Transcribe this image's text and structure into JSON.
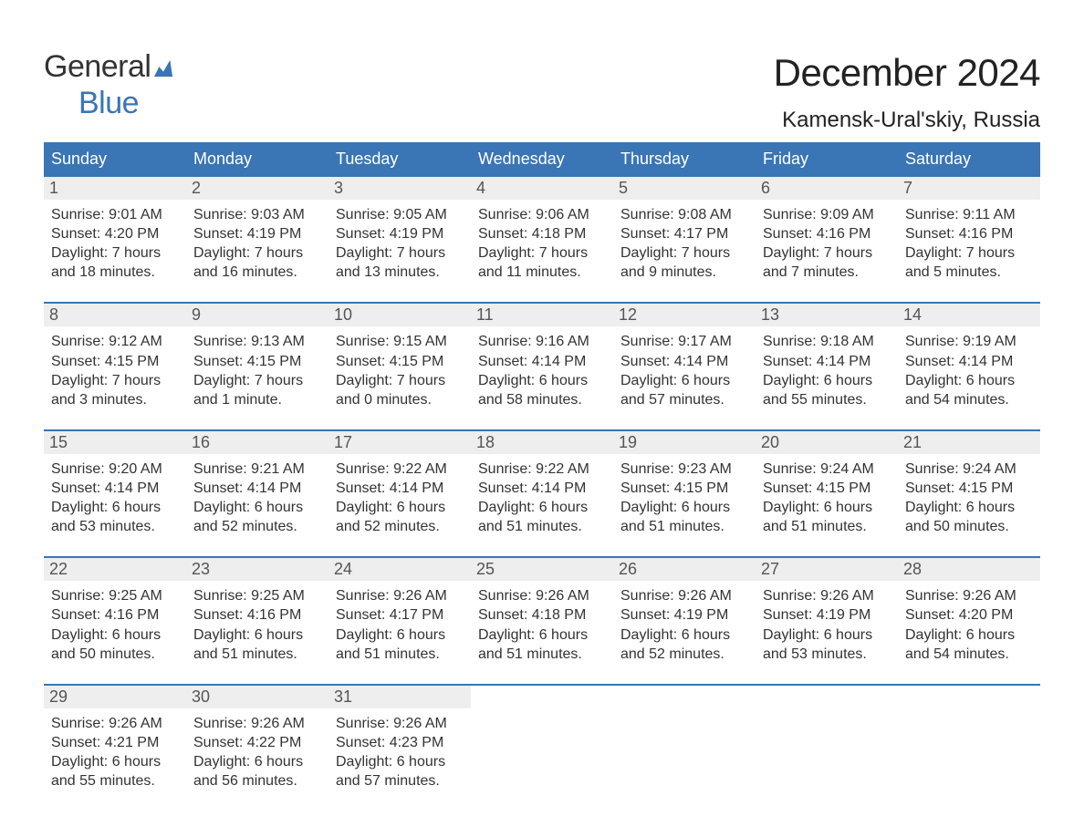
{
  "logo": {
    "word1": "General",
    "word2": "Blue",
    "icon_color": "#3a75b5"
  },
  "title": "December 2024",
  "location": "Kamensk-Ural'skiy, Russia",
  "colors": {
    "header_bg": "#3a75b5",
    "header_text": "#ffffff",
    "daynum_bg": "#eeeeee",
    "border": "#3a75b5",
    "body_text": "#333333"
  },
  "day_labels": [
    "Sunday",
    "Monday",
    "Tuesday",
    "Wednesday",
    "Thursday",
    "Friday",
    "Saturday"
  ],
  "weeks": [
    [
      {
        "n": "1",
        "sunrise": "Sunrise: 9:01 AM",
        "sunset": "Sunset: 4:20 PM",
        "d1": "Daylight: 7 hours",
        "d2": "and 18 minutes."
      },
      {
        "n": "2",
        "sunrise": "Sunrise: 9:03 AM",
        "sunset": "Sunset: 4:19 PM",
        "d1": "Daylight: 7 hours",
        "d2": "and 16 minutes."
      },
      {
        "n": "3",
        "sunrise": "Sunrise: 9:05 AM",
        "sunset": "Sunset: 4:19 PM",
        "d1": "Daylight: 7 hours",
        "d2": "and 13 minutes."
      },
      {
        "n": "4",
        "sunrise": "Sunrise: 9:06 AM",
        "sunset": "Sunset: 4:18 PM",
        "d1": "Daylight: 7 hours",
        "d2": "and 11 minutes."
      },
      {
        "n": "5",
        "sunrise": "Sunrise: 9:08 AM",
        "sunset": "Sunset: 4:17 PM",
        "d1": "Daylight: 7 hours",
        "d2": "and 9 minutes."
      },
      {
        "n": "6",
        "sunrise": "Sunrise: 9:09 AM",
        "sunset": "Sunset: 4:16 PM",
        "d1": "Daylight: 7 hours",
        "d2": "and 7 minutes."
      },
      {
        "n": "7",
        "sunrise": "Sunrise: 9:11 AM",
        "sunset": "Sunset: 4:16 PM",
        "d1": "Daylight: 7 hours",
        "d2": "and 5 minutes."
      }
    ],
    [
      {
        "n": "8",
        "sunrise": "Sunrise: 9:12 AM",
        "sunset": "Sunset: 4:15 PM",
        "d1": "Daylight: 7 hours",
        "d2": "and 3 minutes."
      },
      {
        "n": "9",
        "sunrise": "Sunrise: 9:13 AM",
        "sunset": "Sunset: 4:15 PM",
        "d1": "Daylight: 7 hours",
        "d2": "and 1 minute."
      },
      {
        "n": "10",
        "sunrise": "Sunrise: 9:15 AM",
        "sunset": "Sunset: 4:15 PM",
        "d1": "Daylight: 7 hours",
        "d2": "and 0 minutes."
      },
      {
        "n": "11",
        "sunrise": "Sunrise: 9:16 AM",
        "sunset": "Sunset: 4:14 PM",
        "d1": "Daylight: 6 hours",
        "d2": "and 58 minutes."
      },
      {
        "n": "12",
        "sunrise": "Sunrise: 9:17 AM",
        "sunset": "Sunset: 4:14 PM",
        "d1": "Daylight: 6 hours",
        "d2": "and 57 minutes."
      },
      {
        "n": "13",
        "sunrise": "Sunrise: 9:18 AM",
        "sunset": "Sunset: 4:14 PM",
        "d1": "Daylight: 6 hours",
        "d2": "and 55 minutes."
      },
      {
        "n": "14",
        "sunrise": "Sunrise: 9:19 AM",
        "sunset": "Sunset: 4:14 PM",
        "d1": "Daylight: 6 hours",
        "d2": "and 54 minutes."
      }
    ],
    [
      {
        "n": "15",
        "sunrise": "Sunrise: 9:20 AM",
        "sunset": "Sunset: 4:14 PM",
        "d1": "Daylight: 6 hours",
        "d2": "and 53 minutes."
      },
      {
        "n": "16",
        "sunrise": "Sunrise: 9:21 AM",
        "sunset": "Sunset: 4:14 PM",
        "d1": "Daylight: 6 hours",
        "d2": "and 52 minutes."
      },
      {
        "n": "17",
        "sunrise": "Sunrise: 9:22 AM",
        "sunset": "Sunset: 4:14 PM",
        "d1": "Daylight: 6 hours",
        "d2": "and 52 minutes."
      },
      {
        "n": "18",
        "sunrise": "Sunrise: 9:22 AM",
        "sunset": "Sunset: 4:14 PM",
        "d1": "Daylight: 6 hours",
        "d2": "and 51 minutes."
      },
      {
        "n": "19",
        "sunrise": "Sunrise: 9:23 AM",
        "sunset": "Sunset: 4:15 PM",
        "d1": "Daylight: 6 hours",
        "d2": "and 51 minutes."
      },
      {
        "n": "20",
        "sunrise": "Sunrise: 9:24 AM",
        "sunset": "Sunset: 4:15 PM",
        "d1": "Daylight: 6 hours",
        "d2": "and 51 minutes."
      },
      {
        "n": "21",
        "sunrise": "Sunrise: 9:24 AM",
        "sunset": "Sunset: 4:15 PM",
        "d1": "Daylight: 6 hours",
        "d2": "and 50 minutes."
      }
    ],
    [
      {
        "n": "22",
        "sunrise": "Sunrise: 9:25 AM",
        "sunset": "Sunset: 4:16 PM",
        "d1": "Daylight: 6 hours",
        "d2": "and 50 minutes."
      },
      {
        "n": "23",
        "sunrise": "Sunrise: 9:25 AM",
        "sunset": "Sunset: 4:16 PM",
        "d1": "Daylight: 6 hours",
        "d2": "and 51 minutes."
      },
      {
        "n": "24",
        "sunrise": "Sunrise: 9:26 AM",
        "sunset": "Sunset: 4:17 PM",
        "d1": "Daylight: 6 hours",
        "d2": "and 51 minutes."
      },
      {
        "n": "25",
        "sunrise": "Sunrise: 9:26 AM",
        "sunset": "Sunset: 4:18 PM",
        "d1": "Daylight: 6 hours",
        "d2": "and 51 minutes."
      },
      {
        "n": "26",
        "sunrise": "Sunrise: 9:26 AM",
        "sunset": "Sunset: 4:19 PM",
        "d1": "Daylight: 6 hours",
        "d2": "and 52 minutes."
      },
      {
        "n": "27",
        "sunrise": "Sunrise: 9:26 AM",
        "sunset": "Sunset: 4:19 PM",
        "d1": "Daylight: 6 hours",
        "d2": "and 53 minutes."
      },
      {
        "n": "28",
        "sunrise": "Sunrise: 9:26 AM",
        "sunset": "Sunset: 4:20 PM",
        "d1": "Daylight: 6 hours",
        "d2": "and 54 minutes."
      }
    ],
    [
      {
        "n": "29",
        "sunrise": "Sunrise: 9:26 AM",
        "sunset": "Sunset: 4:21 PM",
        "d1": "Daylight: 6 hours",
        "d2": "and 55 minutes."
      },
      {
        "n": "30",
        "sunrise": "Sunrise: 9:26 AM",
        "sunset": "Sunset: 4:22 PM",
        "d1": "Daylight: 6 hours",
        "d2": "and 56 minutes."
      },
      {
        "n": "31",
        "sunrise": "Sunrise: 9:26 AM",
        "sunset": "Sunset: 4:23 PM",
        "d1": "Daylight: 6 hours",
        "d2": "and 57 minutes."
      },
      null,
      null,
      null,
      null
    ]
  ]
}
